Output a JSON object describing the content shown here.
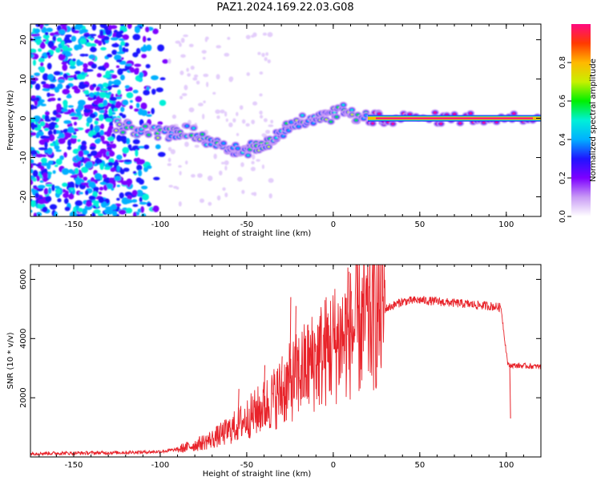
{
  "title": "PAZ1.2024.169.22.03.G08",
  "chart_data": [
    {
      "type": "heatmap",
      "xlabel": "Height of straight line (km)",
      "ylabel": "Frequency (Hz)",
      "xlim": [
        -175,
        120
      ],
      "ylim": [
        -25,
        24
      ],
      "xticks": [
        -150,
        -100,
        -50,
        0,
        50,
        100
      ],
      "yticks": [
        -20,
        -10,
        0,
        10,
        20
      ],
      "colorbar": {
        "label": "Normalized spectral amplitude",
        "range": [
          0,
          1
        ],
        "ticks": [
          0.0,
          0.2,
          0.4,
          0.6,
          0.8
        ],
        "colormap": [
          "#ffffff",
          "#c99cf5",
          "#7d00ff",
          "#1f14ff",
          "#00b0ff",
          "#00f0d8",
          "#00f000",
          "#c8f000",
          "#ffb800",
          "#ff3a00",
          "#ff0a80"
        ]
      },
      "features": {
        "noise_region_x": [
          -175,
          -95
        ],
        "trace_points": [
          [
            -125,
            -2
          ],
          [
            -110,
            -3
          ],
          [
            -95,
            -4
          ],
          [
            -85,
            -3
          ],
          [
            -75,
            -5
          ],
          [
            -62,
            -7
          ],
          [
            -52,
            -9
          ],
          [
            -45,
            -7
          ],
          [
            -35,
            -6
          ],
          [
            -25,
            -2
          ],
          [
            -15,
            0
          ],
          [
            -5,
            0
          ],
          [
            5,
            2
          ],
          [
            15,
            0
          ],
          [
            30,
            0
          ],
          [
            60,
            0
          ],
          [
            90,
            0
          ],
          [
            120,
            0
          ]
        ],
        "strong_line_x": [
          20,
          120
        ],
        "strong_line_freq": 0
      }
    },
    {
      "type": "line",
      "xlabel": "Height of straight line (km)",
      "ylabel": "SNR (10 * v/v)",
      "xlim": [
        -175,
        120
      ],
      "ylim": [
        0,
        6500
      ],
      "xticks": [
        -150,
        -100,
        -50,
        0,
        50,
        100
      ],
      "yticks": [
        2000,
        4000,
        6000
      ],
      "color": "#e8232a",
      "series": [
        {
          "name": "",
          "envelope": [
            [
              -175,
              120
            ],
            [
              -150,
              130
            ],
            [
              -120,
              150
            ],
            [
              -100,
              180
            ],
            [
              -90,
              250
            ],
            [
              -80,
              400
            ],
            [
              -70,
              600
            ],
            [
              -60,
              900
            ],
            [
              -50,
              1300
            ],
            [
              -40,
              1700
            ],
            [
              -30,
              2200
            ],
            [
              -20,
              2800
            ],
            [
              -10,
              3300
            ],
            [
              0,
              3800
            ],
            [
              10,
              4200
            ],
            [
              20,
              4600
            ],
            [
              30,
              5000
            ],
            [
              40,
              5250
            ],
            [
              50,
              5300
            ],
            [
              60,
              5250
            ],
            [
              70,
              5200
            ],
            [
              80,
              5150
            ],
            [
              90,
              5100
            ],
            [
              97,
              5050
            ],
            [
              99,
              4000
            ],
            [
              101,
              3100
            ],
            [
              120,
              3050
            ]
          ],
          "spikes": [
            [
              -25,
              5400
            ],
            [
              -22,
              5100
            ],
            [
              8,
              6400
            ],
            [
              10,
              5600
            ],
            [
              -30,
              3400
            ],
            [
              -40,
              3100
            ],
            [
              -55,
              2300
            ],
            [
              102,
              1300
            ]
          ]
        }
      ]
    }
  ]
}
